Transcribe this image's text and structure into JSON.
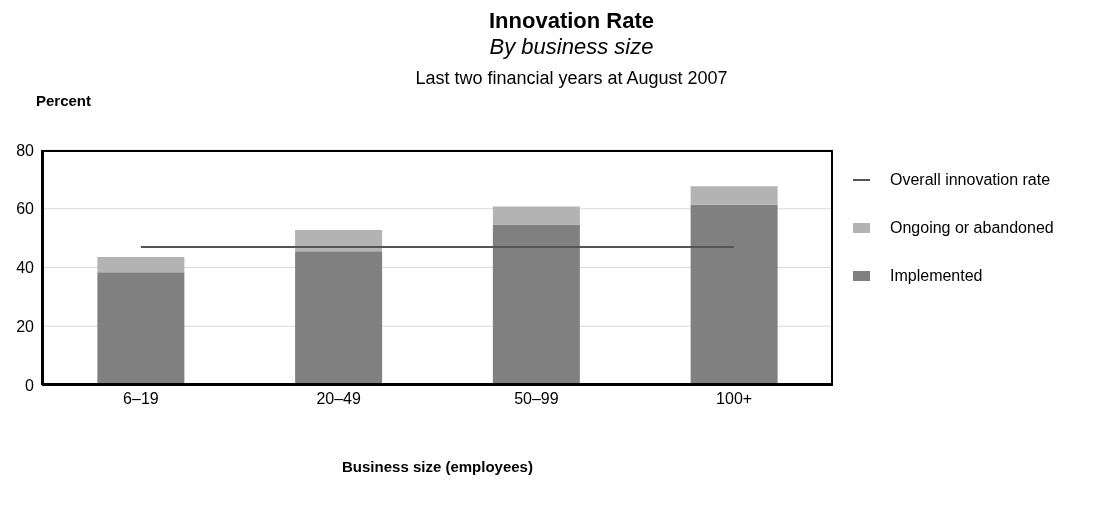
{
  "chart_data": {
    "type": "bar",
    "title": "Innovation Rate",
    "subtitle": "By business size",
    "annotations": [
      "Last two financial years at August 2007"
    ],
    "ylabel": "Percent",
    "xlabel": "Business size (employees)",
    "categories": [
      "6–19",
      "20–49",
      "50–99",
      "100+"
    ],
    "stacked": true,
    "ylim": [
      0,
      80
    ],
    "yticks": [
      0,
      20,
      40,
      60,
      80
    ],
    "grid": "y",
    "legend": "right",
    "marker": "none",
    "series": [
      {
        "name": "Implemented",
        "color": "#808080",
        "values": [
          38.4,
          45.5,
          54.6,
          61.4
        ]
      },
      {
        "name": "Ongoing or abandoned",
        "color": "#b3b3b3",
        "values": [
          5.2,
          7.3,
          6.2,
          6.3
        ]
      },
      {
        "name": "Overall innovation rate",
        "type": "line",
        "color": "#555555",
        "values": [
          47,
          47,
          47,
          47
        ]
      }
    ]
  }
}
